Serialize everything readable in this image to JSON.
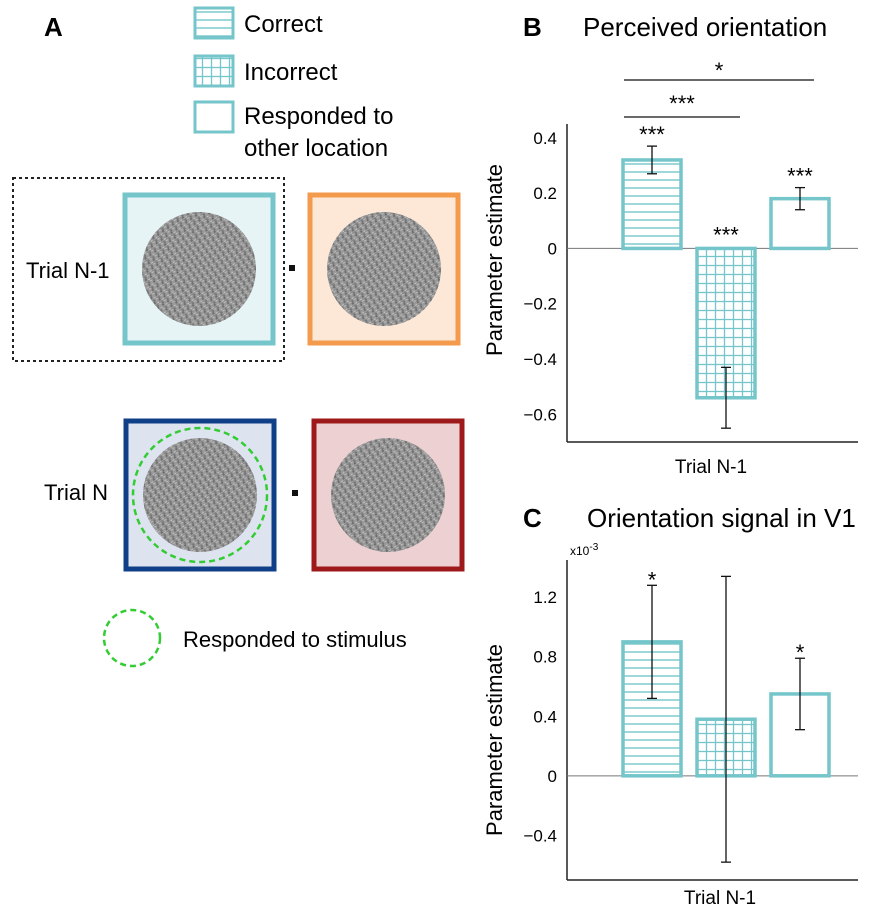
{
  "panel_a": {
    "letter": "A",
    "legend": [
      {
        "key": "correct",
        "label": "Correct"
      },
      {
        "key": "incorrect",
        "label": "Incorrect"
      },
      {
        "key": "other",
        "label": "Responded to",
        "label2": "other location"
      }
    ],
    "trial_prev_label": "Trial N-1",
    "trial_curr_label": "Trial N",
    "responded_label": "Responded to stimulus",
    "colors": {
      "teal": "#74c6ca",
      "orange": "#f49a4c",
      "navy": "#0e3f87",
      "darkred": "#9e1a1a",
      "green": "#33cc33"
    }
  },
  "chart_data": [
    {
      "panel": "B",
      "type": "bar",
      "title": "Perceived orientation",
      "xlabel": "Trial N-1",
      "ylabel": "Parameter estimate",
      "categories": [
        "Correct",
        "Incorrect",
        "Responded to other location"
      ],
      "values": [
        0.32,
        -0.54,
        0.18
      ],
      "errors": [
        0.05,
        0.11,
        0.04
      ],
      "significance": [
        "***",
        "***",
        "***"
      ],
      "comparisons": [
        {
          "from": 0,
          "to": 1,
          "label": "***"
        },
        {
          "from": 0,
          "to": 2,
          "label": "*"
        }
      ],
      "yticks": [
        "0.4",
        "0.2",
        "0",
        "-0.2",
        "-0.4",
        "-0.6"
      ],
      "ylim": [
        -0.7,
        0.45
      ],
      "bar_color": "#74c6ca"
    },
    {
      "panel": "C",
      "type": "bar",
      "title": "Orientation signal in V1",
      "xlabel": "Trial N-1",
      "ylabel": "Parameter estimate",
      "scale_label": "x10",
      "scale_exp": "-3",
      "categories": [
        "Correct",
        "Incorrect",
        "Responded to other location"
      ],
      "values": [
        0.9,
        0.38,
        0.55
      ],
      "errors": [
        0.38,
        0.96,
        0.24
      ],
      "significance": [
        "*",
        "",
        "*"
      ],
      "yticks": [
        "1.2",
        "0.8",
        "0.4",
        "0",
        "-0.4"
      ],
      "ylim": [
        -0.7,
        1.45
      ],
      "bar_color": "#74c6ca"
    }
  ]
}
